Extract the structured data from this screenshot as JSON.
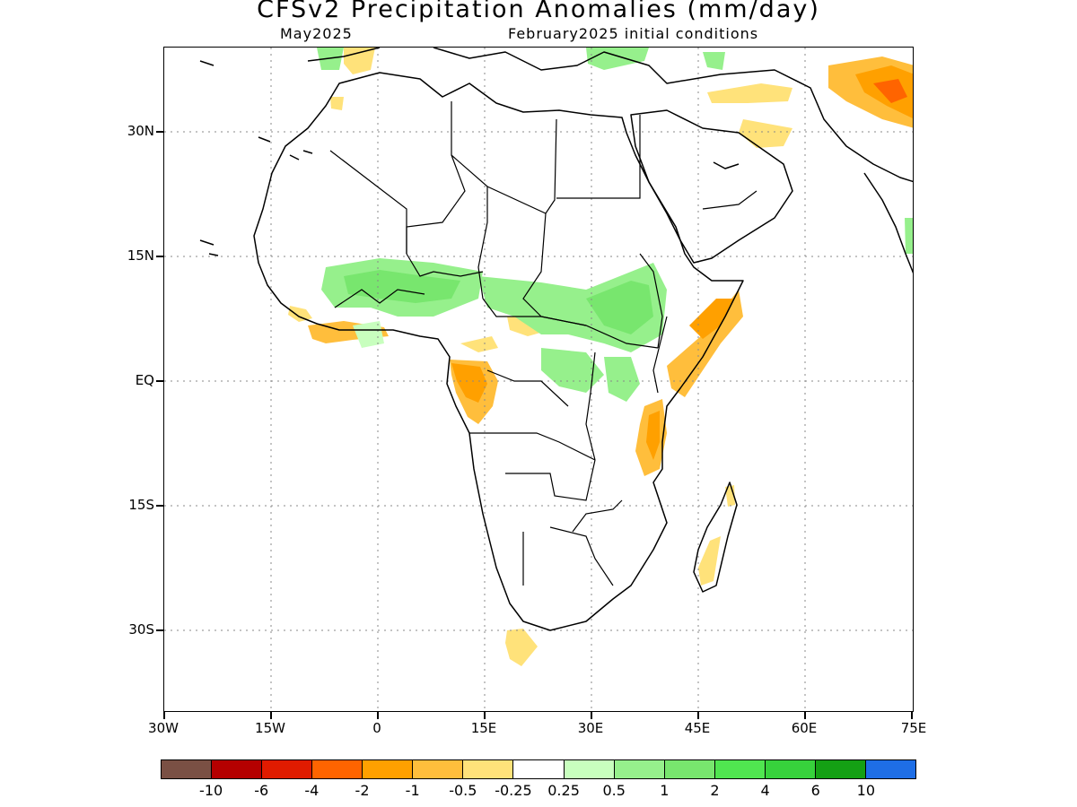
{
  "title": "CFSv2 Precipitation Anomalies (mm/day)",
  "subtitle_left": "May2025",
  "subtitle_right": "February2025 initial conditions",
  "latitude_labels": [
    "30N",
    "15N",
    "EQ",
    "15S",
    "30S"
  ],
  "longitude_labels": [
    "30W",
    "15W",
    "0",
    "15E",
    "30E",
    "45E",
    "60E",
    "75E"
  ],
  "colorbar": {
    "colors": [
      "#7a5044",
      "#b50000",
      "#e01b00",
      "#ff6400",
      "#ffa000",
      "#ffbe3c",
      "#ffe27a",
      "#ffffff",
      "#c8ffbe",
      "#96f08c",
      "#78e66e",
      "#50e650",
      "#37d23c",
      "#14a014",
      "#1e6ee6"
    ],
    "labels": [
      "-10",
      "-6",
      "-4",
      "-2",
      "-1",
      "-0.5",
      "-0.25",
      "0.25",
      "0.5",
      "1",
      "2",
      "4",
      "6",
      "10"
    ]
  },
  "map": {
    "lon_range": [
      -30,
      75
    ],
    "lat_range": [
      -45,
      39
    ],
    "grid": "dotted every 15 degrees"
  }
}
